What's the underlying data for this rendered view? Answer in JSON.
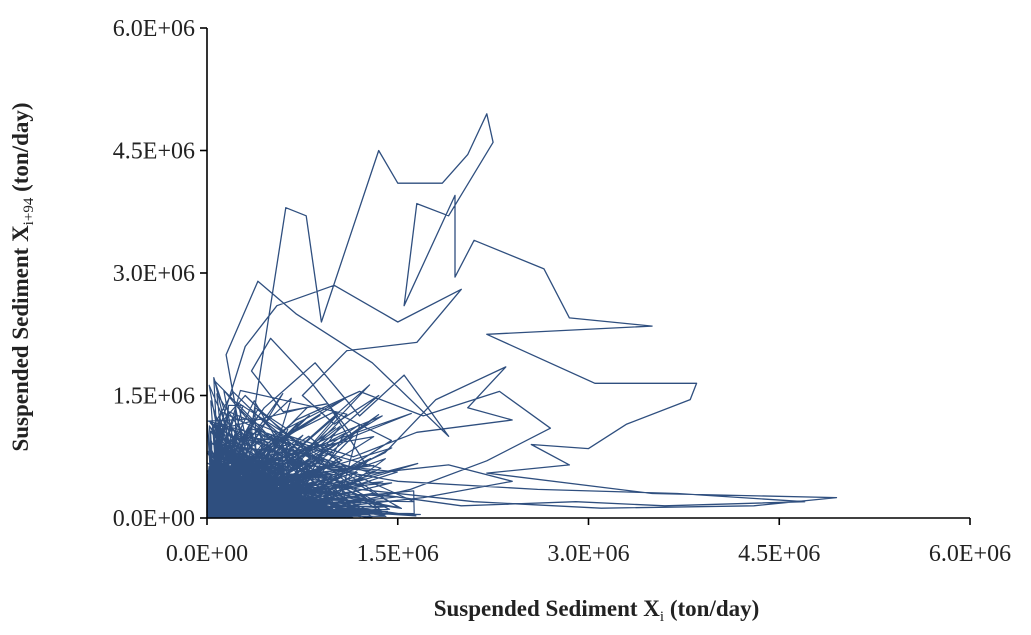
{
  "chart_data": {
    "type": "line",
    "title": "",
    "xlabel": {
      "main": "Suspended Sediment X",
      "sub": "i",
      "unit": " (ton/day)"
    },
    "ylabel": {
      "main": "Suspended Sediment X",
      "sub": "i+94",
      "unit": " (ton/day)"
    },
    "xlim": [
      0,
      6000000
    ],
    "ylim": [
      0,
      6000000
    ],
    "x_ticks": [
      "0.0E+00",
      "1.5E+06",
      "3.0E+06",
      "4.5E+06",
      "6.0E+06"
    ],
    "y_ticks": [
      "0.0E+00",
      "1.5E+06",
      "3.0E+06",
      "4.5E+06",
      "6.0E+06"
    ],
    "grid": false,
    "colors": {
      "series": "#2f4f7f",
      "axis": "#000000"
    },
    "series": [
      {
        "points": [
          [
            80000,
            300000
          ],
          [
            350000,
            1100000
          ],
          [
            620000,
            3800000
          ],
          [
            780000,
            3700000
          ],
          [
            900000,
            2400000
          ],
          [
            1350000,
            4500000
          ],
          [
            1500000,
            4100000
          ],
          [
            1850000,
            4100000
          ],
          [
            2050000,
            4450000
          ],
          [
            2200000,
            4950000
          ],
          [
            2250000,
            4600000
          ],
          [
            1900000,
            3700000
          ],
          [
            1650000,
            3850000
          ],
          [
            1550000,
            2600000
          ],
          [
            1950000,
            3950000
          ],
          [
            1950000,
            2950000
          ],
          [
            2100000,
            3400000
          ],
          [
            2650000,
            3050000
          ],
          [
            2850000,
            2450000
          ],
          [
            3500000,
            2350000
          ],
          [
            2200000,
            2250000
          ],
          [
            3050000,
            1650000
          ],
          [
            3850000,
            1650000
          ],
          [
            3800000,
            1450000
          ],
          [
            3300000,
            1150000
          ],
          [
            3000000,
            850000
          ],
          [
            2550000,
            900000
          ],
          [
            2850000,
            650000
          ],
          [
            2200000,
            550000
          ],
          [
            3500000,
            300000
          ],
          [
            4950000,
            250000
          ],
          [
            4300000,
            150000
          ],
          [
            3100000,
            120000
          ],
          [
            2100000,
            200000
          ],
          [
            1200000,
            350000
          ],
          [
            600000,
            550000
          ],
          [
            250000,
            900000
          ],
          [
            450000,
            1350000
          ],
          [
            850000,
            1900000
          ],
          [
            1200000,
            1250000
          ],
          [
            1550000,
            1750000
          ],
          [
            1900000,
            1000000
          ],
          [
            1300000,
            1900000
          ],
          [
            700000,
            2500000
          ],
          [
            400000,
            2900000
          ],
          [
            150000,
            2000000
          ],
          [
            300000,
            700000
          ],
          [
            850000,
            400000
          ],
          [
            1400000,
            800000
          ],
          [
            1800000,
            1450000
          ],
          [
            2350000,
            1850000
          ],
          [
            2050000,
            1350000
          ],
          [
            2400000,
            1200000
          ],
          [
            1650000,
            1050000
          ],
          [
            1150000,
            750000
          ],
          [
            650000,
            1000000
          ],
          [
            350000,
            450000
          ],
          [
            100000,
            150000
          ],
          [
            500000,
            250000
          ],
          [
            1100000,
            150000
          ],
          [
            1700000,
            250000
          ],
          [
            2400000,
            450000
          ],
          [
            1900000,
            650000
          ],
          [
            1300000,
            550000
          ],
          [
            750000,
            800000
          ],
          [
            400000,
            1250000
          ],
          [
            180000,
            600000
          ],
          [
            60000,
            900000
          ],
          [
            300000,
            2100000
          ],
          [
            550000,
            2600000
          ],
          [
            1000000,
            2850000
          ],
          [
            1500000,
            2400000
          ],
          [
            2000000,
            2800000
          ],
          [
            1650000,
            2150000
          ],
          [
            1100000,
            2050000
          ],
          [
            750000,
            1500000
          ],
          [
            1000000,
            1150000
          ],
          [
            1350000,
            1500000
          ],
          [
            900000,
            900000
          ],
          [
            500000,
            700000
          ],
          [
            200000,
            350000
          ],
          [
            650000,
            150000
          ],
          [
            1300000,
            300000
          ],
          [
            2000000,
            150000
          ],
          [
            2900000,
            200000
          ],
          [
            3600000,
            150000
          ],
          [
            4700000,
            200000
          ],
          [
            3700000,
            300000
          ],
          [
            2600000,
            350000
          ],
          [
            1500000,
            450000
          ],
          [
            950000,
            600000
          ],
          [
            600000,
            1050000
          ],
          [
            300000,
            1500000
          ],
          [
            130000,
            1200000
          ],
          [
            250000,
            400000
          ],
          [
            700000,
            300000
          ],
          [
            1150000,
            1000000
          ],
          [
            800000,
            1700000
          ],
          [
            500000,
            2200000
          ],
          [
            350000,
            1800000
          ],
          [
            600000,
            1300000
          ],
          [
            950000,
            1400000
          ],
          [
            1250000,
            650000
          ],
          [
            700000,
            450000
          ],
          [
            300000,
            150000
          ],
          [
            900000,
            100000
          ],
          [
            1600000,
            350000
          ],
          [
            2200000,
            700000
          ],
          [
            2700000,
            1100000
          ],
          [
            2300000,
            1550000
          ],
          [
            1700000,
            1250000
          ],
          [
            1200000,
            1550000
          ],
          [
            700000,
            1200000
          ],
          [
            350000,
            750000
          ],
          [
            100000,
            500000
          ],
          [
            50000,
            200000
          ],
          [
            400000,
            600000
          ],
          [
            800000,
            1000000
          ],
          [
            1100000,
            600000
          ],
          [
            1450000,
            950000
          ],
          [
            1000000,
            1300000
          ],
          [
            550000,
            950000
          ],
          [
            200000,
            1000000
          ],
          [
            450000,
            400000
          ],
          [
            150000,
            50000
          ]
        ]
      }
    ]
  }
}
